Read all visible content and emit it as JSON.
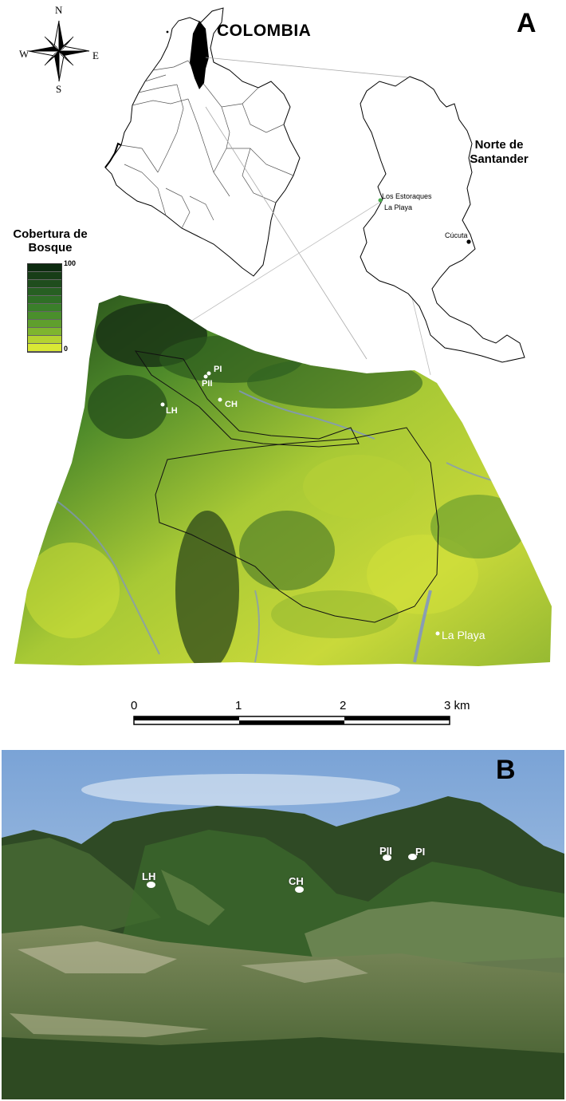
{
  "panel_a": {
    "letter": "A",
    "country_title": "COLOMBIA",
    "department_title_line1": "Norte de",
    "department_title_line2": "Santander",
    "places": {
      "estoraques": "Los Estoraques",
      "la_playa_inset": "La Playa",
      "cucuta": "Cúcuta",
      "la_playa_terrain": "La Playa"
    },
    "compass": {
      "n": "N",
      "s": "S",
      "e": "E",
      "w": "W"
    },
    "legend": {
      "title_line1": "Cobertura de",
      "title_line2": "Bosque",
      "max": "100",
      "min": "0",
      "colors": [
        "#0d2b10",
        "#173d17",
        "#1f4d1d",
        "#275f22",
        "#2f6f26",
        "#3a7f2a",
        "#4a8f2c",
        "#5f9f2d",
        "#7fb52f",
        "#b5d331",
        "#d9e835"
      ]
    },
    "sites": {
      "pi": "PI",
      "pii": "PII",
      "ch": "CH",
      "lh": "LH"
    },
    "scale_bar": {
      "t0": "0",
      "t1": "1",
      "t2": "2",
      "t3": "3 km"
    }
  },
  "panel_b": {
    "letter": "B",
    "sites": {
      "lh": "LH",
      "ch": "CH",
      "pii": "PII",
      "pi": "PI"
    }
  }
}
